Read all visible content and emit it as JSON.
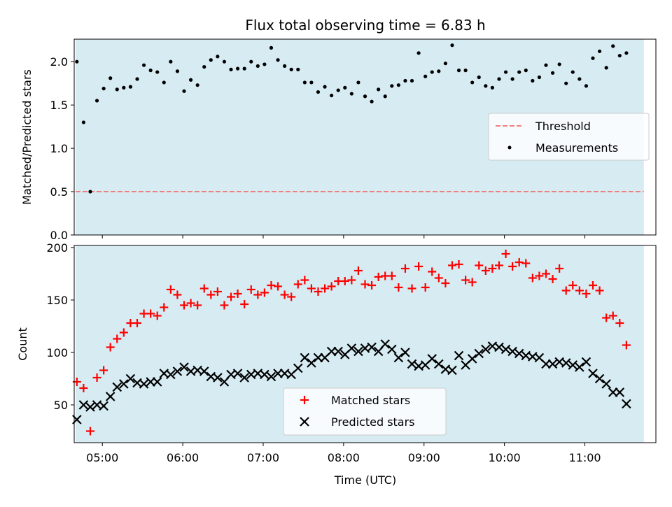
{
  "title": "Flux total observing time = 6.83 h",
  "colors": {
    "band": "#add8e6",
    "band_opacity": 0.5,
    "threshold": "#f08080",
    "measurement": "#000000",
    "matched": "#ff0000",
    "predicted": "#000000"
  },
  "chart_data": [
    {
      "type": "scatter",
      "panel": "top",
      "ylabel": "Matched/Predicted stars",
      "xlabel": "",
      "ylim": [
        0,
        2.26
      ],
      "yticks": [
        "0.0",
        "0.5",
        "1.0",
        "1.5",
        "2.0"
      ],
      "ytick_values": [
        0,
        0.5,
        1.0,
        1.5,
        2.0
      ],
      "xlim": [
        "04:39",
        "11:53"
      ],
      "shaded_span": [
        "04:40",
        "11:44"
      ],
      "legend_position": "center-right",
      "series": [
        {
          "name": "Threshold",
          "kind": "hline",
          "value": 0.5,
          "x_range": [
            "04:40",
            "11:44"
          ]
        },
        {
          "name": "Measurements",
          "kind": "points",
          "x": [
            "04:41",
            "04:46",
            "04:51",
            "04:56",
            "05:01",
            "05:06",
            "05:11",
            "05:16",
            "05:21",
            "05:26",
            "05:31",
            "05:36",
            "05:41",
            "05:46",
            "05:51",
            "05:56",
            "06:01",
            "06:06",
            "06:11",
            "06:16",
            "06:21",
            "06:26",
            "06:31",
            "06:36",
            "06:41",
            "06:46",
            "06:51",
            "06:56",
            "07:01",
            "07:06",
            "07:11",
            "07:16",
            "07:21",
            "07:26",
            "07:31",
            "07:36",
            "07:41",
            "07:46",
            "07:51",
            "07:56",
            "08:01",
            "08:06",
            "08:11",
            "08:16",
            "08:21",
            "08:26",
            "08:31",
            "08:36",
            "08:41",
            "08:46",
            "08:51",
            "08:56",
            "09:01",
            "09:06",
            "09:11",
            "09:16",
            "09:21",
            "09:26",
            "09:31",
            "09:36",
            "09:41",
            "09:46",
            "09:51",
            "09:56",
            "10:01",
            "10:06",
            "10:11",
            "10:16",
            "10:21",
            "10:26",
            "10:31",
            "10:36",
            "10:41",
            "10:46",
            "10:51",
            "10:56",
            "11:01",
            "11:06",
            "11:11",
            "11:16",
            "11:21",
            "11:26",
            "11:31"
          ],
          "y": [
            2.0,
            1.3,
            0.5,
            1.55,
            1.69,
            1.81,
            1.68,
            1.7,
            1.71,
            1.8,
            1.96,
            1.9,
            1.88,
            1.76,
            2.0,
            1.89,
            1.66,
            1.79,
            1.73,
            1.94,
            2.02,
            2.06,
            2.0,
            1.91,
            1.92,
            1.92,
            2.0,
            1.95,
            1.97,
            2.16,
            2.02,
            1.95,
            1.91,
            1.91,
            1.76,
            1.76,
            1.65,
            1.71,
            1.61,
            1.67,
            1.7,
            1.63,
            1.76,
            1.6,
            1.54,
            1.68,
            1.6,
            1.72,
            1.73,
            1.78,
            1.78,
            2.1,
            1.83,
            1.88,
            1.89,
            1.98,
            2.19,
            1.9,
            1.9,
            1.76,
            1.82,
            1.72,
            1.7,
            1.8,
            1.88,
            1.8,
            1.88,
            1.9,
            1.78,
            1.82,
            1.96,
            1.87,
            1.97,
            1.75,
            1.88,
            1.8,
            1.72,
            2.04,
            2.12,
            1.93,
            2.18,
            2.07,
            2.1
          ]
        }
      ]
    },
    {
      "type": "scatter",
      "panel": "bottom",
      "xlabel": "Time (UTC)",
      "ylabel": "Count",
      "ylim": [
        14,
        202
      ],
      "yticks": [
        "50",
        "100",
        "150",
        "200"
      ],
      "ytick_values": [
        50,
        100,
        150,
        200
      ],
      "xlim": [
        "04:39",
        "11:53"
      ],
      "xticks": [
        "05:00",
        "06:00",
        "07:00",
        "08:00",
        "09:00",
        "10:00",
        "11:00"
      ],
      "shaded_span": [
        "04:40",
        "11:44"
      ],
      "legend_position": "lower-center",
      "series": [
        {
          "name": "Matched stars",
          "marker": "+",
          "x": [
            "04:41",
            "04:46",
            "04:51",
            "04:56",
            "05:01",
            "05:06",
            "05:11",
            "05:16",
            "05:21",
            "05:26",
            "05:31",
            "05:36",
            "05:41",
            "05:46",
            "05:51",
            "05:56",
            "06:01",
            "06:06",
            "06:11",
            "06:16",
            "06:21",
            "06:26",
            "06:31",
            "06:36",
            "06:41",
            "06:46",
            "06:51",
            "06:56",
            "07:01",
            "07:06",
            "07:11",
            "07:16",
            "07:21",
            "07:26",
            "07:31",
            "07:36",
            "07:41",
            "07:46",
            "07:51",
            "07:56",
            "08:01",
            "08:06",
            "08:11",
            "08:16",
            "08:21",
            "08:26",
            "08:31",
            "08:36",
            "08:41",
            "08:46",
            "08:51",
            "08:56",
            "09:01",
            "09:06",
            "09:11",
            "09:16",
            "09:21",
            "09:26",
            "09:31",
            "09:36",
            "09:41",
            "09:46",
            "09:51",
            "09:56",
            "10:01",
            "10:06",
            "10:11",
            "10:16",
            "10:21",
            "10:26",
            "10:31",
            "10:36",
            "10:41",
            "10:46",
            "10:51",
            "10:56",
            "11:01",
            "11:06",
            "11:11",
            "11:16",
            "11:21",
            "11:26",
            "11:31"
          ],
          "y": [
            72,
            66,
            25,
            76,
            83,
            105,
            113,
            119,
            128,
            128,
            137,
            137,
            135,
            143,
            160,
            155,
            145,
            147,
            145,
            161,
            155,
            158,
            145,
            153,
            156,
            146,
            160,
            155,
            157,
            164,
            163,
            155,
            153,
            165,
            169,
            161,
            158,
            161,
            163,
            168,
            168,
            169,
            178,
            165,
            164,
            172,
            173,
            173,
            162,
            180,
            161,
            182,
            162,
            177,
            171,
            166,
            183,
            184,
            169,
            167,
            183,
            178,
            180,
            183,
            194,
            182,
            186,
            185,
            171,
            173,
            175,
            170,
            180,
            159,
            164,
            159,
            156,
            164,
            159,
            133,
            135,
            128,
            107
          ]
        },
        {
          "name": "Predicted stars",
          "marker": "x",
          "x": [
            "04:41",
            "04:46",
            "04:51",
            "04:56",
            "05:01",
            "05:06",
            "05:11",
            "05:16",
            "05:21",
            "05:26",
            "05:31",
            "05:36",
            "05:41",
            "05:46",
            "05:51",
            "05:56",
            "06:01",
            "06:06",
            "06:11",
            "06:16",
            "06:21",
            "06:26",
            "06:31",
            "06:36",
            "06:41",
            "06:46",
            "06:51",
            "06:56",
            "07:01",
            "07:06",
            "07:11",
            "07:16",
            "07:21",
            "07:26",
            "07:31",
            "07:36",
            "07:41",
            "07:46",
            "07:51",
            "07:56",
            "08:01",
            "08:06",
            "08:11",
            "08:16",
            "08:21",
            "08:26",
            "08:31",
            "08:36",
            "08:41",
            "08:46",
            "08:51",
            "08:56",
            "09:01",
            "09:06",
            "09:11",
            "09:16",
            "09:21",
            "09:26",
            "09:31",
            "09:36",
            "09:41",
            "09:46",
            "09:51",
            "09:56",
            "10:01",
            "10:06",
            "10:11",
            "10:16",
            "10:21",
            "10:26",
            "10:31",
            "10:36",
            "10:41",
            "10:46",
            "10:51",
            "10:56",
            "11:01",
            "11:06",
            "11:11",
            "11:16",
            "11:21",
            "11:26",
            "11:31"
          ],
          "y": [
            36,
            50,
            48,
            50,
            49,
            58,
            67,
            70,
            75,
            71,
            70,
            72,
            72,
            80,
            79,
            82,
            86,
            82,
            83,
            82,
            77,
            76,
            72,
            79,
            80,
            76,
            79,
            80,
            79,
            77,
            80,
            80,
            79,
            85,
            95,
            90,
            95,
            95,
            101,
            101,
            98,
            104,
            101,
            104,
            105,
            101,
            108,
            103,
            95,
            100,
            89,
            87,
            88,
            94,
            89,
            84,
            83,
            97,
            88,
            94,
            99,
            103,
            106,
            105,
            103,
            101,
            99,
            97,
            96,
            95,
            89,
            89,
            91,
            90,
            88,
            86,
            91,
            80,
            75,
            70,
            62,
            62,
            51
          ]
        }
      ]
    }
  ]
}
